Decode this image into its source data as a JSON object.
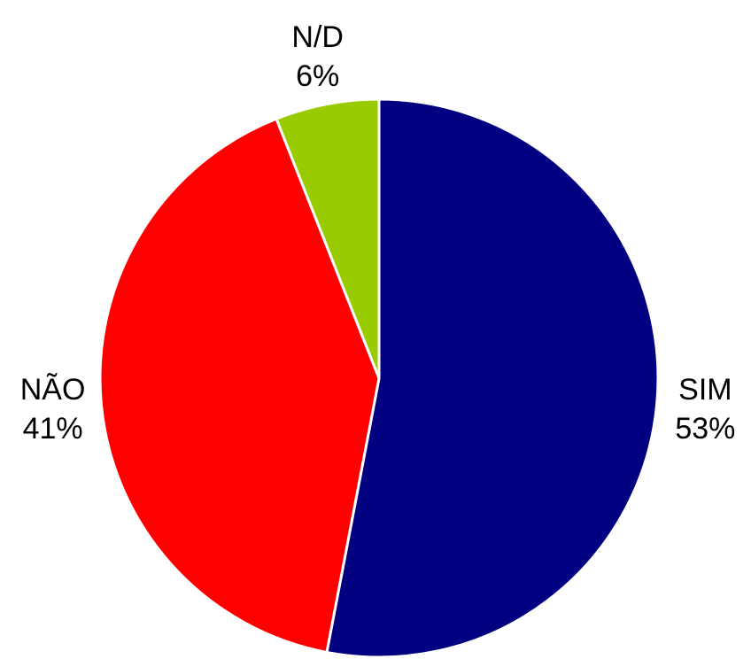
{
  "chart_data": {
    "type": "pie",
    "title": "",
    "slices": [
      {
        "label": "SIM",
        "value": 53,
        "value_label": "53%",
        "color": "#000080"
      },
      {
        "label": "NÃO",
        "value": 41,
        "value_label": "41%",
        "color": "#ff0000"
      },
      {
        "label": "N/D",
        "value": 6,
        "value_label": "6%",
        "color": "#99cc00"
      }
    ],
    "start_angle_deg": 0,
    "direction": "clockwise",
    "legend": "none"
  }
}
